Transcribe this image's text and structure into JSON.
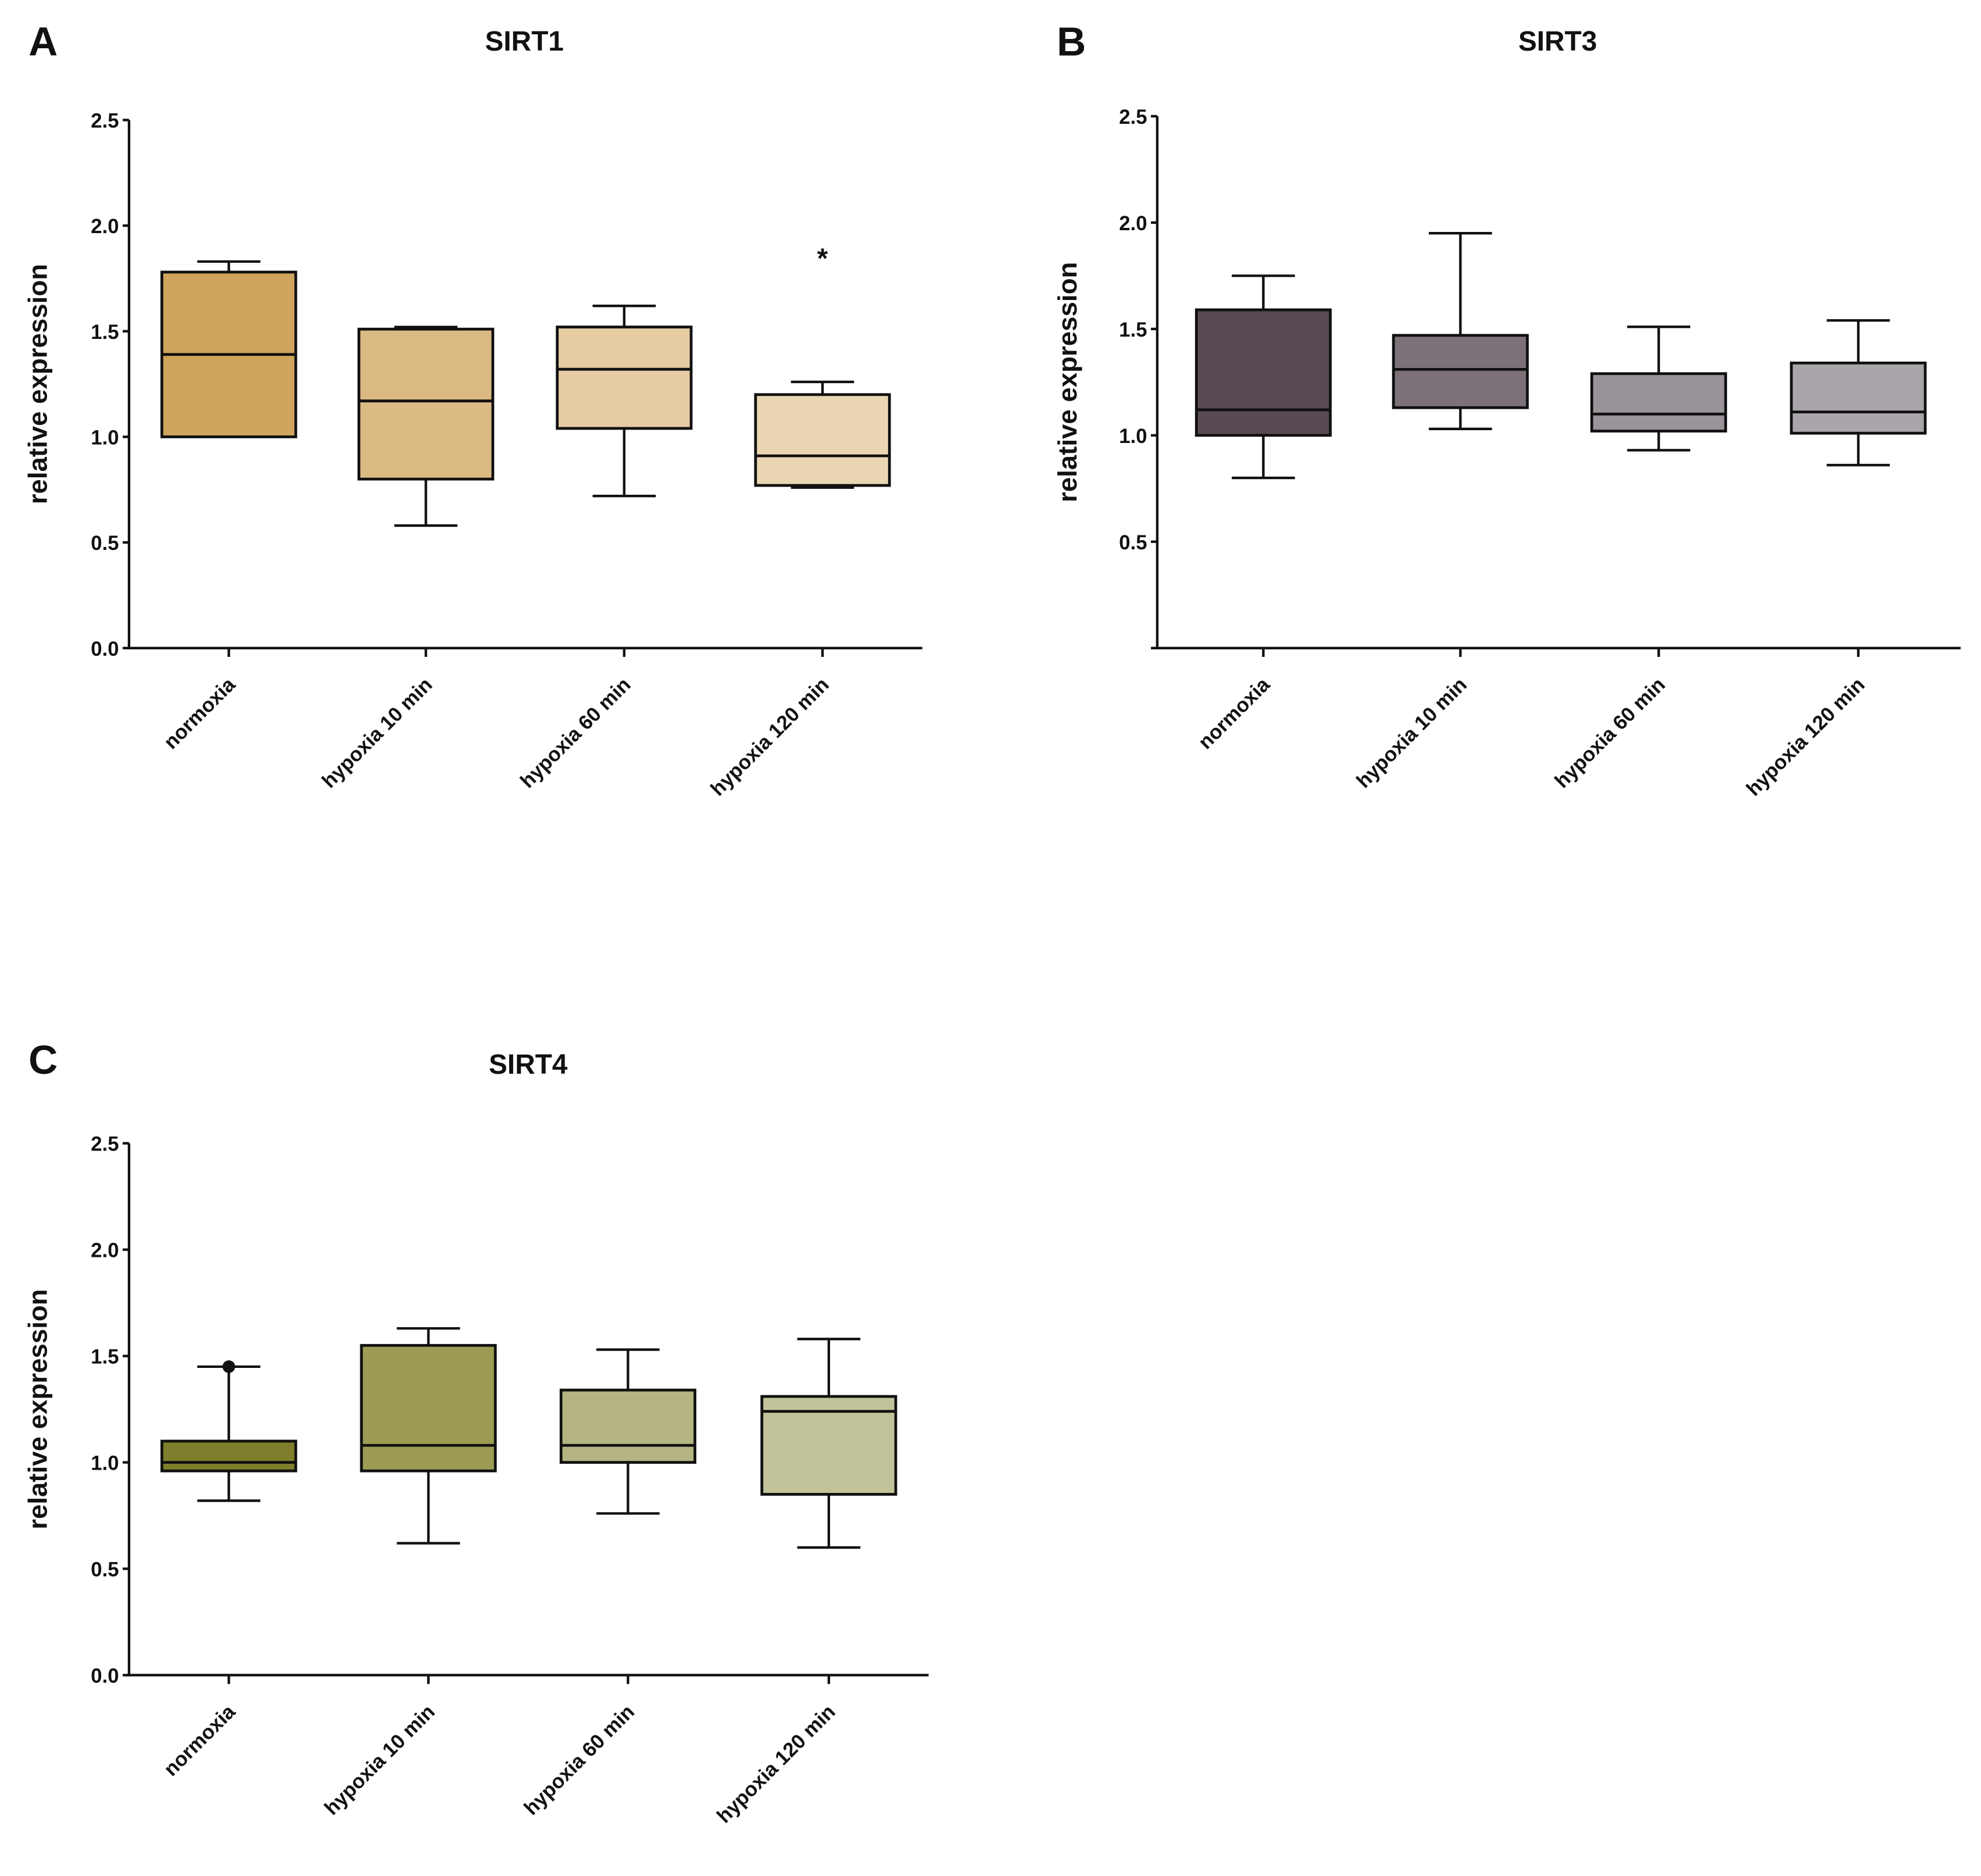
{
  "chart_data": [
    {
      "type": "box",
      "panel_label": "A",
      "title": "SIRT1",
      "ylabel": "relative expression",
      "xlabel": "",
      "ylim": [
        0,
        2.5
      ],
      "yticks": [
        "0.0",
        "0.5",
        "1.0",
        "1.5",
        "2.0",
        "2.5"
      ],
      "categories": [
        "normoxia",
        "hypoxia 10 min",
        "hypoxia 60 min",
        "hypoxia 120 min"
      ],
      "series": [
        {
          "name": "normoxia",
          "min": 1.0,
          "q1": 1.0,
          "median": 1.39,
          "q3": 1.78,
          "max": 1.83,
          "color": "#cfa45c"
        },
        {
          "name": "hypoxia 10 min",
          "min": 0.58,
          "q1": 0.8,
          "median": 1.17,
          "q3": 1.51,
          "max": 1.52,
          "color": "#dbb983"
        },
        {
          "name": "hypoxia 60 min",
          "min": 0.72,
          "q1": 1.04,
          "median": 1.32,
          "q3": 1.52,
          "max": 1.62,
          "color": "#e5cca3"
        },
        {
          "name": "hypoxia 120 min",
          "min": 0.76,
          "q1": 0.77,
          "median": 0.91,
          "q3": 1.2,
          "max": 1.26,
          "color": "#ead6b3"
        }
      ],
      "annotations": [
        {
          "text": "*",
          "category": "hypoxia 120 min",
          "y": 1.86
        }
      ]
    },
    {
      "type": "box",
      "panel_label": "B",
      "title": "SIRT3",
      "ylabel": "relative expression",
      "xlabel": "",
      "ylim": [
        0,
        2.5
      ],
      "yticks": [
        "",
        "0.5",
        "1.0",
        "1.5",
        "2.0",
        "2.5"
      ],
      "categories": [
        "normoxia",
        "hypoxia 10 min",
        "hypoxia 60 min",
        "hypoxia 120 min"
      ],
      "series": [
        {
          "name": "normoxia",
          "min": 0.8,
          "q1": 1.0,
          "median": 1.12,
          "q3": 1.59,
          "max": 1.75,
          "color": "#584b55"
        },
        {
          "name": "hypoxia 10 min",
          "min": 1.03,
          "q1": 1.13,
          "median": 1.31,
          "q3": 1.47,
          "max": 1.95,
          "color": "#7d7179"
        },
        {
          "name": "hypoxia 60 min",
          "min": 0.93,
          "q1": 1.02,
          "median": 1.1,
          "q3": 1.29,
          "max": 1.51,
          "color": "#9a9399"
        },
        {
          "name": "hypoxia 120 min",
          "min": 0.86,
          "q1": 1.01,
          "median": 1.11,
          "q3": 1.34,
          "max": 1.54,
          "color": "#aaa5aa"
        }
      ],
      "annotations": []
    },
    {
      "type": "box",
      "panel_label": "C",
      "title": "SIRT4",
      "ylabel": "relative expression",
      "xlabel": "",
      "ylim": [
        0,
        2.5
      ],
      "yticks": [
        "0.0",
        "0.5",
        "1.0",
        "1.5",
        "2.0",
        "2.5"
      ],
      "categories": [
        "normoxia",
        "hypoxia 10 min",
        "hypoxia 60 min",
        "hypoxia 120 min"
      ],
      "series": [
        {
          "name": "normoxia",
          "min": 0.82,
          "q1": 0.96,
          "median": 1.0,
          "q3": 1.1,
          "max": 1.45,
          "color": "#7e7e2c",
          "outliers": [
            1.45
          ]
        },
        {
          "name": "hypoxia 10 min",
          "min": 0.62,
          "q1": 0.96,
          "median": 1.08,
          "q3": 1.55,
          "max": 1.63,
          "color": "#9c9c55"
        },
        {
          "name": "hypoxia 60 min",
          "min": 0.76,
          "q1": 1.0,
          "median": 1.08,
          "q3": 1.34,
          "max": 1.53,
          "color": "#b5b584"
        },
        {
          "name": "hypoxia 120 min",
          "min": 0.6,
          "q1": 0.85,
          "median": 1.24,
          "q3": 1.31,
          "max": 1.58,
          "color": "#c3c39a"
        }
      ],
      "annotations": []
    }
  ]
}
